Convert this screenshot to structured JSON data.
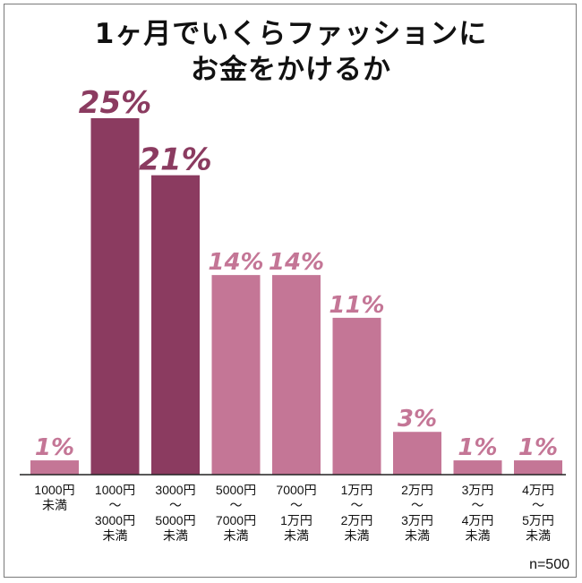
{
  "title_lines": [
    "1ヶ月でいくらファッションに",
    "お金をかけるか"
  ],
  "sample_note": "n=500",
  "colors": {
    "light": "#c47696",
    "dark": "#8b3b60",
    "text": "#111111"
  },
  "chart_data": {
    "type": "bar",
    "title": "1ヶ月でいくらファッションにお金をかけるか",
    "xlabel": "",
    "ylabel": "",
    "ylim": [
      0,
      25
    ],
    "unit": "%",
    "grid": false,
    "legend": "none",
    "categories": [
      [
        "1000円",
        "未満"
      ],
      [
        "1000円",
        "〜",
        "3000円",
        "未満"
      ],
      [
        "3000円",
        "〜",
        "5000円",
        "未満"
      ],
      [
        "5000円",
        "〜",
        "7000円",
        "未満"
      ],
      [
        "7000円",
        "〜",
        "1万円",
        "未満"
      ],
      [
        "1万円",
        "〜",
        "2万円",
        "未満"
      ],
      [
        "2万円",
        "〜",
        "3万円",
        "未満"
      ],
      [
        "3万円",
        "〜",
        "4万円",
        "未満"
      ],
      [
        "4万円",
        "〜",
        "5万円",
        "未満"
      ]
    ],
    "values": [
      1,
      25,
      21,
      14,
      14,
      11,
      3,
      1,
      1
    ],
    "value_labels": [
      "1%",
      "25%",
      "21%",
      "14%",
      "14%",
      "11%",
      "3%",
      "1%",
      "1%"
    ],
    "highlight_colors": [
      "light",
      "dark",
      "dark",
      "light",
      "light",
      "light",
      "light",
      "light",
      "light"
    ]
  }
}
